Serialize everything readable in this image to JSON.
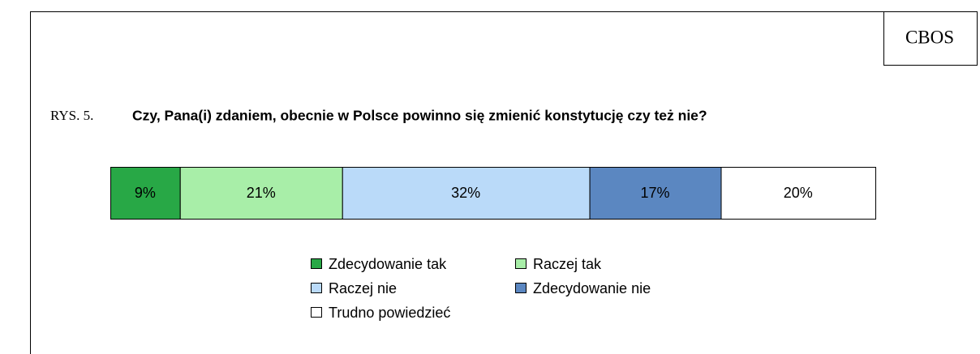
{
  "chart_data": {
    "type": "stacked-bar",
    "source": "CBOS",
    "figure_label": "RYS. 5.",
    "title": "Czy, Pana(i) zdaniem, obecnie w Polsce powinno się zmienić konstytucję czy też nie?",
    "series": [
      {
        "name": "Zdecydowanie tak",
        "color": "#28a846",
        "values": [
          9
        ],
        "value_labels": [
          "9%"
        ]
      },
      {
        "name": "Raczej tak",
        "color": "#a8eea8",
        "values": [
          21
        ],
        "value_labels": [
          "21%"
        ]
      },
      {
        "name": "Raczej nie",
        "color": "#badaf9",
        "values": [
          32
        ],
        "value_labels": [
          "32%"
        ]
      },
      {
        "name": "Zdecydowanie nie",
        "color": "#5b87c1",
        "values": [
          17
        ],
        "value_labels": [
          "17%"
        ]
      },
      {
        "name": "Trudno powiedzieć",
        "color": "#ffffff",
        "values": [
          20
        ],
        "value_labels": [
          "20%"
        ]
      }
    ]
  }
}
